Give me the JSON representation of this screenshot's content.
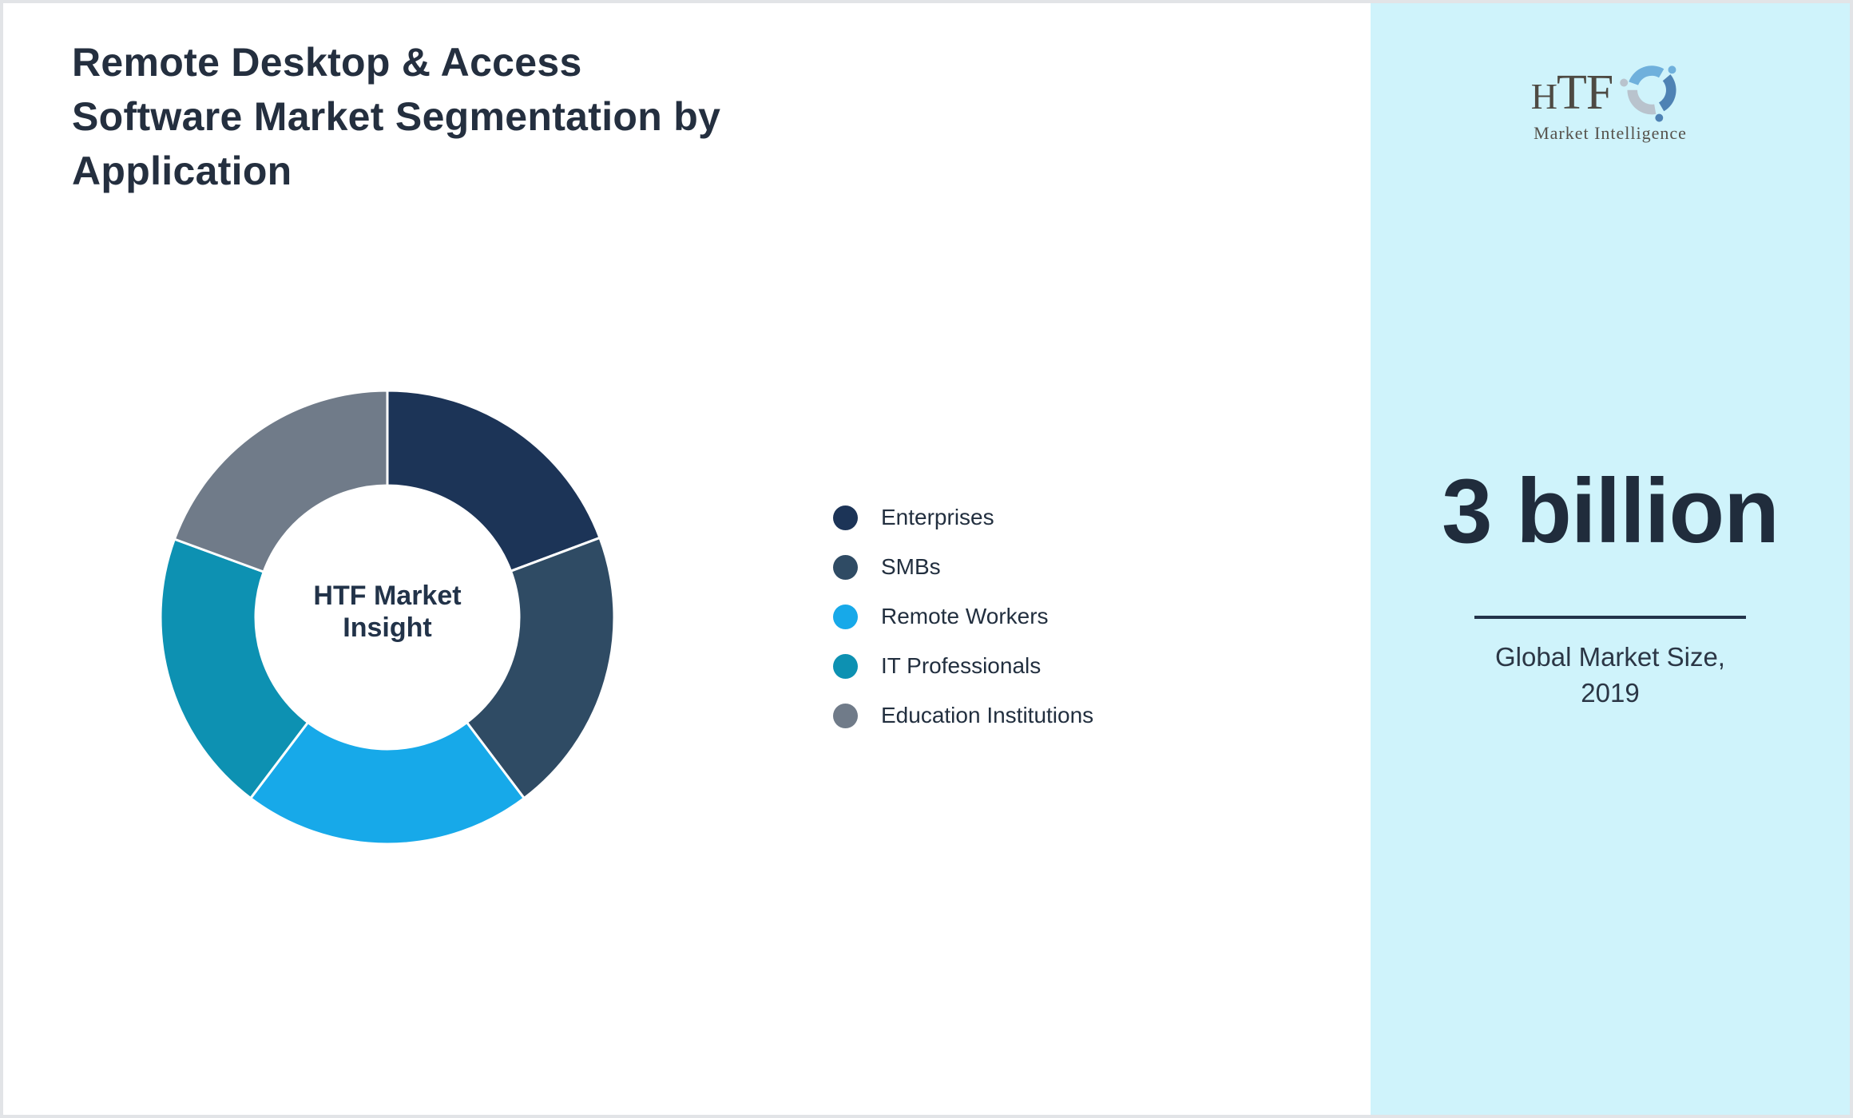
{
  "page": {
    "background": "#ffffff",
    "border_color": "#e2e4e7"
  },
  "title_lines": [
    "Remote Desktop & Access",
    "Software Market Segmentation by",
    "Application"
  ],
  "chart_data": {
    "type": "pie",
    "subtype": "donut",
    "title": "Remote Desktop & Access Software Market Segmentation by Application",
    "center_label": "HTF Market Insight",
    "legend_position": "right",
    "labels": [
      "Enterprises",
      "SMBs",
      "Remote Workers",
      "IT Professionals",
      "Education Institutions"
    ],
    "values": [
      19.3,
      20.4,
      20.6,
      20.3,
      19.4
    ],
    "values_note": "percent share estimated from segment angles; no data labels shown in image",
    "colors": [
      "#1c3457",
      "#2f4b64",
      "#17a9e9",
      "#0d91b2",
      "#707b89"
    ],
    "start_angle_deg": 0,
    "separator_color": "#ffffff",
    "inner_radius_ratio": 0.58
  },
  "sidebar": {
    "background": "#cff3fb",
    "logo": {
      "text_h": "H",
      "text_tf": "TF",
      "subtext": "Market Intelligence",
      "mark_colors": [
        "#6fb0dc",
        "#4e82b4",
        "#b9c3cd"
      ]
    },
    "stat": {
      "value": "3 billion",
      "label_lines": [
        "Global Market Size,",
        "2019"
      ],
      "divider_color": "#22334a"
    }
  }
}
